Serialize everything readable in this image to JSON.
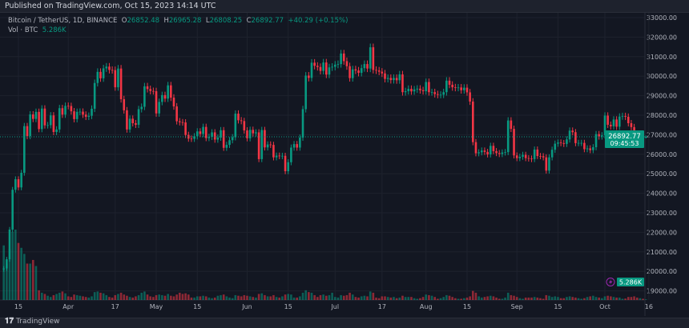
{
  "published": "Published on TradingView.com, Oct 15, 2023 14:14 UTC",
  "legend": {
    "symbol": "Bitcoin / TetherUS, 1D, BINANCE",
    "o_label": "O",
    "o": "26852.48",
    "h_label": "H",
    "h": "26965.28",
    "l_label": "L",
    "l": "26808.25",
    "c_label": "C",
    "c": "26892.77",
    "change": "+40.29 (+0.15%)",
    "vol_label": "Vol · BTC",
    "vol": "5.286K"
  },
  "last_price": {
    "price": "26892.77",
    "countdown": "09:45:53",
    "volume": "5.286K"
  },
  "footer": {
    "brand": "TradingView",
    "logo": "17"
  },
  "colors": {
    "up": "#089981",
    "down": "#f23645",
    "background": "#131722",
    "grid": "#1e222d",
    "alert": "#9c27b0"
  },
  "chart_data": {
    "type": "candlestick",
    "symbol": "BTCUSDT",
    "interval": "1D",
    "start_date": "2023-03-10",
    "end_date": "2023-10-15",
    "first_open": 20100,
    "last_candle": {
      "open": 26852.48,
      "high": 26965.28,
      "low": 26808.25,
      "close": 26892.77
    },
    "close": [
      20150,
      20620,
      22140,
      24180,
      24720,
      24300,
      25050,
      27440,
      26930,
      28040,
      27810,
      28170,
      27290,
      28340,
      27480,
      27490,
      27990,
      27140,
      27270,
      28360,
      28030,
      28480,
      28470,
      28200,
      27800,
      28170,
      28180,
      28030,
      27920,
      27970,
      28330,
      29650,
      30220,
      29890,
      30400,
      30490,
      30320,
      30310,
      29430,
      30390,
      28820,
      28250,
      27270,
      27820,
      27590,
      27510,
      28310,
      28430,
      29480,
      29340,
      29240,
      29230,
      28090,
      28680,
      29030,
      28850,
      29530,
      28900,
      28450,
      27690,
      27640,
      27630,
      26990,
      26800,
      26790,
      26920,
      27170,
      27040,
      27400,
      26830,
      26890,
      27120,
      26750,
      26850,
      27230,
      26330,
      26480,
      26720,
      26870,
      28080,
      27740,
      27700,
      27220,
      26820,
      27250,
      27070,
      27120,
      25750,
      27240,
      26350,
      26500,
      26480,
      25840,
      25930,
      25900,
      25920,
      25130,
      25590,
      26340,
      26520,
      26340,
      26850,
      28310,
      30030,
      29910,
      30690,
      30530,
      30470,
      30270,
      30700,
      30080,
      30450,
      30480,
      30590,
      30620,
      31160,
      30770,
      30510,
      29900,
      30350,
      30290,
      30170,
      30410,
      30620,
      30390,
      31480,
      30320,
      30290,
      30230,
      30140,
      29860,
      29910,
      29800,
      29910,
      29790,
      30090,
      29180,
      29230,
      29350,
      29220,
      29320,
      29360,
      29280,
      29230,
      29700,
      29180,
      29180,
      29080,
      29040,
      29050,
      29180,
      29770,
      29560,
      29430,
      29400,
      29420,
      29280,
      29410,
      29170,
      28700,
      26620,
      26050,
      26100,
      26190,
      26120,
      25990,
      26430,
      26160,
      26060,
      26010,
      26090,
      26110,
      27730,
      27300,
      25940,
      25800,
      25870,
      25970,
      25800,
      25780,
      25750,
      26240,
      25910,
      25900,
      25840,
      25160,
      25840,
      26230,
      26540,
      26600,
      26570,
      26530,
      26760,
      27210,
      27130,
      26570,
      26580,
      26580,
      26260,
      26300,
      26210,
      26360,
      27030,
      26910,
      26970,
      27980,
      27510,
      27430,
      27780,
      27410,
      27930,
      27960,
      27920,
      27590,
      27390,
      26880,
      26760,
      26860,
      26852.48,
      26892.77
    ],
    "volume_k": [
      450,
      300,
      420,
      560,
      580,
      470,
      430,
      380,
      300,
      300,
      330,
      280,
      80,
      60,
      50,
      35,
      25,
      40,
      50,
      60,
      70,
      55,
      30,
      25,
      45,
      40,
      35,
      30,
      25,
      20,
      30,
      65,
      70,
      60,
      55,
      40,
      25,
      20,
      40,
      50,
      60,
      45,
      35,
      25,
      20,
      30,
      40,
      60,
      70,
      45,
      30,
      25,
      40,
      45,
      40,
      35,
      50,
      35,
      30,
      45,
      60,
      50,
      55,
      45,
      20,
      20,
      30,
      30,
      35,
      30,
      20,
      15,
      20,
      35,
      40,
      45,
      30,
      20,
      15,
      40,
      35,
      30,
      40,
      35,
      30,
      25,
      20,
      50,
      55,
      40,
      30,
      30,
      40,
      25,
      20,
      30,
      45,
      50,
      45,
      20,
      20,
      30,
      60,
      80,
      65,
      60,
      40,
      25,
      40,
      45,
      35,
      40,
      60,
      25,
      20,
      40,
      35,
      40,
      60,
      45,
      25,
      20,
      30,
      35,
      30,
      70,
      60,
      20,
      15,
      30,
      30,
      25,
      20,
      25,
      15,
      20,
      35,
      25,
      25,
      25,
      15,
      10,
      15,
      25,
      45,
      40,
      35,
      25,
      10,
      15,
      25,
      40,
      35,
      25,
      15,
      10,
      10,
      15,
      20,
      30,
      75,
      60,
      30,
      20,
      25,
      30,
      35,
      30,
      20,
      10,
      10,
      20,
      60,
      40,
      35,
      25,
      15,
      10,
      20,
      20,
      20,
      25,
      20,
      15,
      10,
      40,
      35,
      25,
      30,
      25,
      15,
      15,
      25,
      30,
      25,
      20,
      15,
      10,
      15,
      25,
      30,
      35,
      25,
      20,
      15,
      30,
      35,
      30,
      25,
      20,
      20,
      10,
      12,
      25,
      25,
      30,
      20,
      15,
      10,
      5.286
    ],
    "y_ticks": [
      "33000.00",
      "32000.00",
      "31000.00",
      "30000.00",
      "29000.00",
      "28000.00",
      "27000.00",
      "26000.00",
      "25000.00",
      "24000.00",
      "23000.00",
      "22000.00",
      "21000.00",
      "20000.00",
      "19000.00"
    ],
    "ylim": [
      19000,
      33000
    ],
    "x_ticks": [
      {
        "label": "15",
        "day": 5
      },
      {
        "label": "Apr",
        "day": 22
      },
      {
        "label": "17",
        "day": 38
      },
      {
        "label": "May",
        "day": 52
      },
      {
        "label": "15",
        "day": 66
      },
      {
        "label": "Jun",
        "day": 83
      },
      {
        "label": "15",
        "day": 97
      },
      {
        "label": "Jul",
        "day": 113
      },
      {
        "label": "17",
        "day": 129
      },
      {
        "label": "Aug",
        "day": 144
      },
      {
        "label": "15",
        "day": 158
      },
      {
        "label": "Sep",
        "day": 175
      },
      {
        "label": "15",
        "day": 189
      },
      {
        "label": "Oct",
        "day": 205
      },
      {
        "label": "16",
        "day": 220
      }
    ],
    "grid": true
  }
}
